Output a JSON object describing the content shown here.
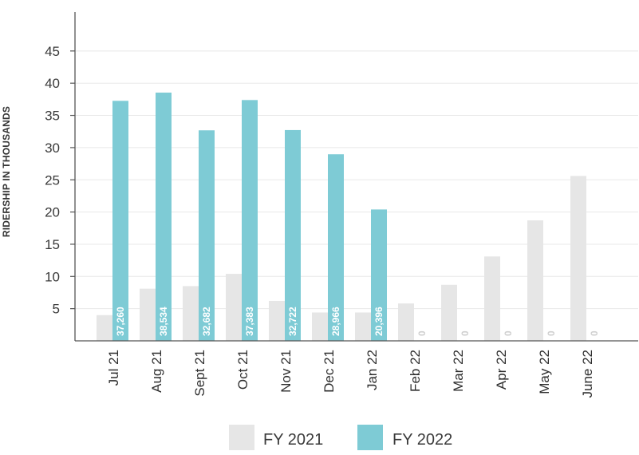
{
  "chart_data": {
    "type": "bar",
    "title": "",
    "xlabel": "",
    "ylabel": "RIDERSHIP IN THOUSANDS",
    "ylim": [
      0,
      50
    ],
    "yticks": [
      5,
      10,
      15,
      20,
      25,
      30,
      35,
      40,
      45
    ],
    "grid": true,
    "legend_placement": "bottom",
    "categories": [
      "Jul 21",
      "Aug 21",
      "Sept 21",
      "Oct 21",
      "Nov 21",
      "Dec 21",
      "Jan 22",
      "Feb 22",
      "Mar 22",
      "Apr 22",
      "May 22",
      "June 22"
    ],
    "series": [
      {
        "name": "FY 2021",
        "color": "#e6e6e6",
        "values": [
          4.0,
          8.1,
          8.5,
          10.4,
          6.2,
          4.4,
          4.4,
          5.8,
          8.7,
          13.1,
          18.7,
          25.6
        ],
        "labels": [
          "",
          "",
          "",
          "",
          "",
          "",
          "",
          "",
          "",
          "",
          "",
          ""
        ]
      },
      {
        "name": "FY 2022",
        "color": "#7ecbd5",
        "values": [
          37.26,
          38.534,
          32.682,
          37.383,
          32.722,
          28.966,
          20.396,
          0,
          0,
          0,
          0,
          0
        ],
        "labels": [
          "37,260",
          "38,534",
          "32,682",
          "37,383",
          "32,722",
          "28,966",
          "20,396",
          "0",
          "0",
          "0",
          "0",
          "0"
        ]
      }
    ]
  }
}
